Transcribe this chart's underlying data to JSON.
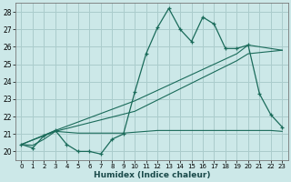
{
  "xlabel": "Humidex (Indice chaleur)",
  "ylabel": "",
  "bg_color": "#cce8e8",
  "grid_color": "#aacccc",
  "line_color": "#1a6b5a",
  "xlim": [
    -0.5,
    23.5
  ],
  "ylim": [
    19.5,
    28.5
  ],
  "xticks": [
    0,
    1,
    2,
    3,
    4,
    5,
    6,
    7,
    8,
    9,
    10,
    11,
    12,
    13,
    14,
    15,
    16,
    17,
    18,
    19,
    20,
    21,
    22,
    23
  ],
  "yticks": [
    20,
    21,
    22,
    23,
    24,
    25,
    26,
    27,
    28
  ],
  "main_line": {
    "x": [
      0,
      1,
      2,
      3,
      4,
      5,
      6,
      7,
      8,
      9,
      10,
      11,
      12,
      13,
      14,
      15,
      16,
      17,
      18,
      19,
      20,
      21,
      22,
      23
    ],
    "y": [
      20.4,
      20.2,
      20.9,
      21.2,
      20.4,
      20.0,
      20.0,
      19.85,
      20.7,
      21.0,
      23.4,
      25.6,
      27.1,
      28.2,
      27.0,
      26.3,
      27.7,
      27.3,
      25.9,
      25.9,
      26.1,
      23.3,
      22.1,
      21.4
    ]
  },
  "flat_line": {
    "x": [
      0,
      1,
      2,
      3,
      4,
      5,
      6,
      7,
      8,
      9,
      10,
      11,
      12,
      13,
      14,
      15,
      16,
      17,
      18,
      19,
      20,
      21,
      22,
      23
    ],
    "y": [
      20.4,
      20.35,
      20.7,
      21.15,
      21.1,
      21.05,
      21.05,
      21.05,
      21.05,
      21.05,
      21.1,
      21.15,
      21.2,
      21.2,
      21.2,
      21.2,
      21.2,
      21.2,
      21.2,
      21.2,
      21.2,
      21.2,
      21.2,
      21.15
    ]
  },
  "diag_line": {
    "x": [
      0,
      3,
      10,
      19,
      20,
      23
    ],
    "y": [
      20.4,
      21.15,
      22.3,
      25.2,
      25.6,
      25.8
    ]
  },
  "diag_line2": {
    "x": [
      0,
      3,
      10,
      19,
      20,
      23
    ],
    "y": [
      20.4,
      21.2,
      22.9,
      25.6,
      26.1,
      25.8
    ]
  }
}
